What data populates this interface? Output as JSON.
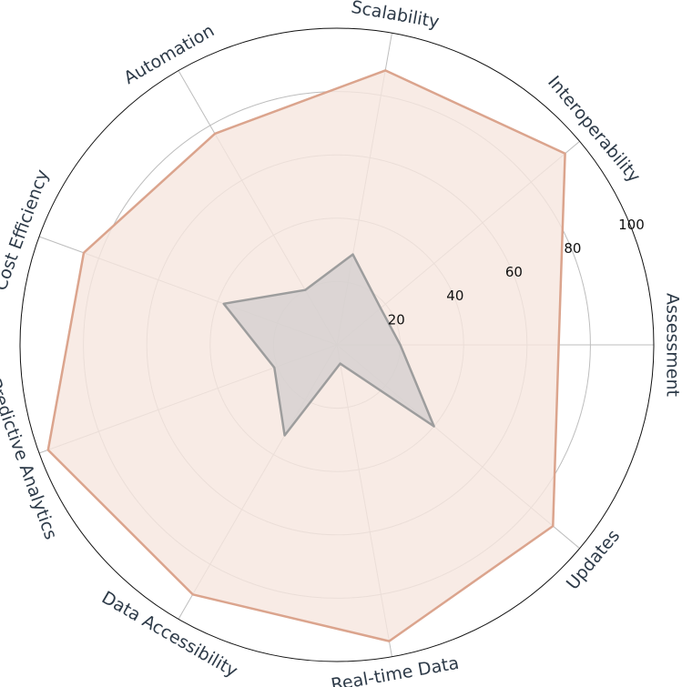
{
  "chart_data": {
    "type": "radar",
    "categories": [
      "Assessment",
      "Interoperability",
      "Scalability",
      "Automation",
      "Cost Efficiency",
      "Predictive Analytics",
      "Data Accessibility",
      "Real-time Data",
      "Updates"
    ],
    "series": [
      {
        "values": [
          70,
          94,
          88,
          77,
          85,
          97,
          91,
          95,
          89
        ],
        "color": "#dba48d",
        "fill": "#f6e6df"
      },
      {
        "values": [
          20,
          18,
          29,
          20,
          38,
          21,
          33,
          6,
          40
        ],
        "color": "#9d9d9d",
        "fill": "#d5d0cf"
      }
    ],
    "rlim": [
      0,
      100
    ],
    "r_ticks": [
      20,
      40,
      60,
      80,
      100
    ],
    "grid": true
  }
}
